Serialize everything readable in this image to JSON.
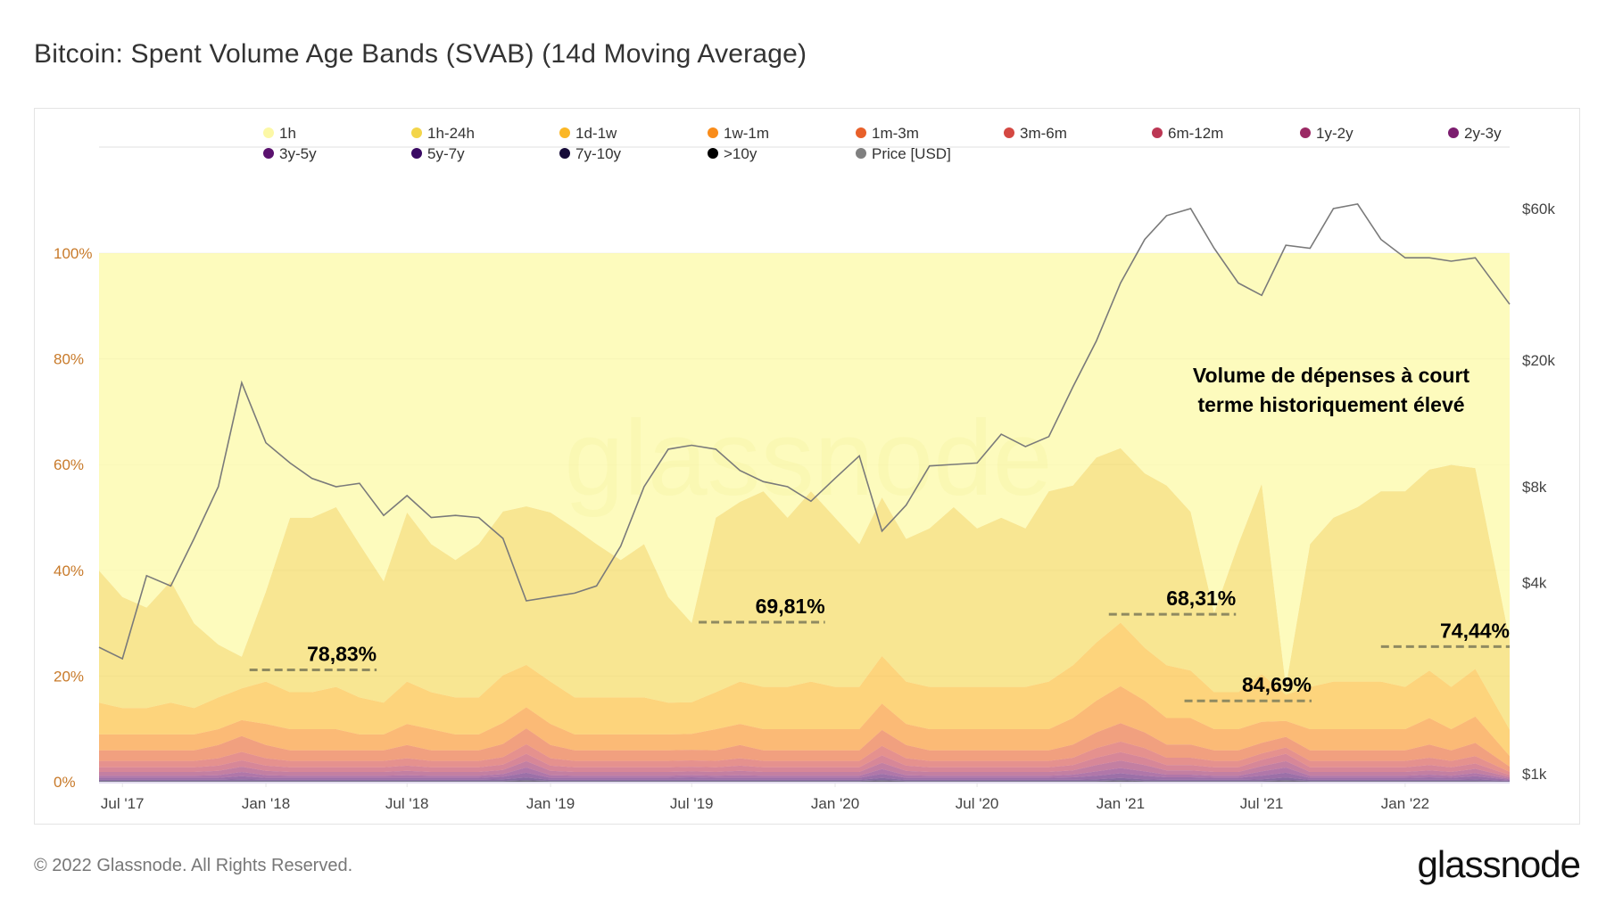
{
  "title": "Bitcoin: Spent Volume Age Bands (SVAB) (14d Moving Average)",
  "footer": {
    "copyright": "© 2022 Glassnode. All Rights Reserved.",
    "logo": "glassnode"
  },
  "watermark": "glassnode",
  "chart_data": {
    "type": "area",
    "stacked": true,
    "normalized_percent": true,
    "title": "Bitcoin: Spent Volume Age Bands (SVAB) (14d Moving Average)",
    "xlim": [
      "2017-06-01",
      "2022-05-15"
    ],
    "x_ticks": [
      {
        "date": "2017-07-01",
        "label": "Jul '17"
      },
      {
        "date": "2018-01-01",
        "label": "Jan '18"
      },
      {
        "date": "2018-07-01",
        "label": "Jul '18"
      },
      {
        "date": "2019-01-01",
        "label": "Jan '19"
      },
      {
        "date": "2019-07-01",
        "label": "Jul '19"
      },
      {
        "date": "2020-01-01",
        "label": "Jan '20"
      },
      {
        "date": "2020-07-01",
        "label": "Jul '20"
      },
      {
        "date": "2021-01-01",
        "label": "Jan '21"
      },
      {
        "date": "2021-07-01",
        "label": "Jul '21"
      },
      {
        "date": "2022-01-01",
        "label": "Jan '22"
      }
    ],
    "y_left": {
      "ylim": [
        0,
        100
      ],
      "ticks": [
        0,
        20,
        40,
        60,
        80,
        100
      ],
      "tick_labels": [
        "0%",
        "20%",
        "40%",
        "60%",
        "80%",
        "100%"
      ],
      "grid": true
    },
    "y_right": {
      "scale": "log",
      "ylim": [
        1000,
        60000
      ],
      "ticks": [
        1000,
        4000,
        8000,
        20000,
        60000
      ],
      "tick_labels": [
        "$1k",
        "$4k",
        "$8k",
        "$20k",
        "$60k"
      ]
    },
    "legend_placement": "top",
    "x": [
      "2017-06",
      "2017-07",
      "2017-08",
      "2017-09",
      "2017-10",
      "2017-11",
      "2017-12",
      "2018-01",
      "2018-02",
      "2018-03",
      "2018-04",
      "2018-05",
      "2018-06",
      "2018-07",
      "2018-08",
      "2018-09",
      "2018-10",
      "2018-11",
      "2018-12",
      "2019-01",
      "2019-02",
      "2019-03",
      "2019-04",
      "2019-05",
      "2019-06",
      "2019-07",
      "2019-08",
      "2019-09",
      "2019-10",
      "2019-11",
      "2019-12",
      "2020-01",
      "2020-02",
      "2020-03",
      "2020-04",
      "2020-05",
      "2020-06",
      "2020-07",
      "2020-08",
      "2020-09",
      "2020-10",
      "2020-11",
      "2020-12",
      "2021-01",
      "2021-02",
      "2021-03",
      "2021-04",
      "2021-05",
      "2021-06",
      "2021-07",
      "2021-08",
      "2021-09",
      "2021-10",
      "2021-11",
      "2021-12",
      "2022-01",
      "2022-02",
      "2022-03",
      "2022-04",
      "2022-05"
    ],
    "series": [
      {
        "name": "1h",
        "color": "#fcf99a",
        "remainder_to_100": true
      },
      {
        "name": "1h-24h",
        "color": "#f3d54a",
        "values": [
          25,
          21,
          19,
          23,
          16,
          10,
          6,
          17,
          33,
          33,
          34,
          29,
          23,
          32,
          28,
          26,
          29,
          31,
          30,
          32,
          32,
          29,
          26,
          29,
          20,
          15,
          33,
          34,
          37,
          32,
          36,
          32,
          27,
          30,
          27,
          30,
          34,
          30,
          32,
          30,
          36,
          34,
          35,
          33,
          33,
          34,
          30,
          15,
          28,
          36,
          1.5,
          27,
          31,
          33,
          36,
          37,
          38,
          42,
          38,
          17
        ]
      },
      {
        "name": "1d-1w",
        "color": "#fbb725",
        "values": [
          6,
          5,
          5,
          6,
          5,
          6,
          6,
          8,
          7,
          7,
          8,
          7,
          6,
          8,
          7,
          7,
          7,
          9,
          8,
          8,
          7,
          7,
          7,
          7,
          6,
          6,
          7,
          8,
          8,
          8,
          9,
          8,
          8,
          9,
          8,
          8,
          8,
          8,
          8,
          8,
          9,
          10,
          11,
          12,
          10,
          10,
          9,
          7,
          7,
          9,
          5,
          8,
          9,
          9,
          9,
          8,
          9,
          8,
          9,
          5
        ]
      },
      {
        "name": "1w-1m",
        "color": "#f98c1a",
        "values": [
          3,
          3,
          3,
          3,
          3,
          3,
          3,
          4,
          4,
          4,
          4,
          3,
          3,
          4,
          4,
          3,
          3,
          4,
          4,
          4,
          3,
          3,
          3,
          3,
          3,
          3,
          4,
          4,
          4,
          4,
          4,
          4,
          4,
          5,
          4,
          4,
          4,
          4,
          4,
          4,
          4,
          5,
          6,
          7,
          6,
          5,
          5,
          4,
          4,
          4,
          3,
          4,
          4,
          4,
          4,
          4,
          5,
          4,
          5,
          2
        ]
      },
      {
        "name": "1m-3m",
        "color": "#e8602a",
        "values": [
          2,
          2,
          2,
          2,
          2,
          2.5,
          3,
          2.5,
          2,
          2,
          2,
          2,
          2,
          2.5,
          2,
          2,
          2,
          2.5,
          3,
          2.5,
          2,
          2,
          2,
          2,
          2,
          2,
          2,
          2.5,
          2,
          2,
          2,
          2,
          2,
          3,
          2.5,
          2,
          2,
          2,
          2,
          2,
          2,
          2.5,
          3,
          3.5,
          3,
          2.5,
          2.5,
          2,
          2,
          2,
          2,
          2,
          2,
          2,
          2,
          2,
          2.5,
          2,
          2.5,
          1
        ]
      },
      {
        "name": "3m-6m",
        "color": "#d44842",
        "values": [
          1.2,
          1.2,
          1.2,
          1.2,
          1.2,
          1.4,
          1.6,
          1.4,
          1.2,
          1.2,
          1.2,
          1.2,
          1.2,
          1.4,
          1.2,
          1.2,
          1.2,
          1.4,
          1.8,
          1.4,
          1.2,
          1.2,
          1.2,
          1.2,
          1.2,
          1.2,
          1.2,
          1.4,
          1.2,
          1.2,
          1.2,
          1.2,
          1.2,
          1.8,
          1.4,
          1.2,
          1.2,
          1.2,
          1.2,
          1.2,
          1.2,
          1.4,
          1.8,
          2,
          1.8,
          1.4,
          1.4,
          1.2,
          1.2,
          1.2,
          1.2,
          1.2,
          1.2,
          1.2,
          1.2,
          1.2,
          1.4,
          1.2,
          1.4,
          0.6
        ]
      },
      {
        "name": "6m-12m",
        "color": "#bc3754",
        "values": [
          0.9,
          0.9,
          0.9,
          0.9,
          0.9,
          1,
          1.2,
          1,
          0.9,
          0.9,
          0.9,
          0.9,
          0.9,
          1,
          0.9,
          0.9,
          0.9,
          1,
          1.4,
          1,
          0.9,
          0.9,
          0.9,
          0.9,
          0.9,
          0.9,
          0.9,
          1,
          0.9,
          0.9,
          0.9,
          0.9,
          0.9,
          1.4,
          1,
          0.9,
          0.9,
          0.9,
          0.9,
          0.9,
          0.9,
          1,
          1.4,
          1.6,
          1.4,
          1,
          1,
          0.9,
          0.9,
          1.2,
          1.4,
          0.9,
          0.9,
          0.9,
          0.9,
          0.9,
          1,
          0.9,
          1,
          0.4
        ]
      },
      {
        "name": "1y-2y",
        "color": "#9b2964",
        "values": [
          0.7,
          0.7,
          0.7,
          0.7,
          0.7,
          0.8,
          1,
          0.8,
          0.7,
          0.7,
          0.7,
          0.7,
          0.7,
          0.8,
          0.7,
          0.7,
          0.7,
          0.8,
          1.2,
          0.8,
          0.7,
          0.7,
          0.7,
          0.7,
          0.7,
          0.7,
          0.7,
          0.8,
          0.7,
          0.7,
          0.7,
          0.7,
          0.7,
          1.2,
          0.8,
          0.7,
          0.7,
          0.7,
          0.7,
          0.7,
          0.7,
          0.8,
          1.2,
          1.4,
          1.2,
          0.8,
          0.8,
          0.7,
          0.7,
          1,
          1.2,
          0.7,
          0.7,
          0.7,
          0.7,
          0.7,
          0.8,
          0.7,
          0.8,
          0.3
        ]
      },
      {
        "name": "2y-3y",
        "color": "#7c1d6f",
        "values": [
          0.4,
          0.4,
          0.4,
          0.4,
          0.4,
          0.5,
          0.8,
          0.5,
          0.4,
          0.4,
          0.4,
          0.4,
          0.4,
          0.5,
          0.4,
          0.4,
          0.4,
          0.5,
          1,
          0.5,
          0.4,
          0.4,
          0.4,
          0.4,
          0.4,
          0.4,
          0.4,
          0.5,
          0.4,
          0.4,
          0.4,
          0.4,
          0.4,
          0.9,
          0.5,
          0.4,
          0.4,
          0.4,
          0.4,
          0.4,
          0.4,
          0.5,
          0.8,
          1,
          0.8,
          0.5,
          0.5,
          0.4,
          0.4,
          0.8,
          1,
          0.4,
          0.4,
          0.4,
          0.4,
          0.4,
          0.5,
          0.4,
          0.6,
          0.2
        ]
      },
      {
        "name": "3y-5y",
        "color": "#5a116e",
        "values": [
          0.4,
          0.4,
          0.4,
          0.4,
          0.4,
          0.4,
          0.6,
          0.4,
          0.4,
          0.4,
          0.4,
          0.4,
          0.4,
          0.4,
          0.4,
          0.4,
          0.4,
          0.5,
          0.9,
          0.4,
          0.4,
          0.4,
          0.4,
          0.4,
          0.4,
          0.5,
          0.4,
          0.4,
          0.4,
          0.4,
          0.4,
          0.4,
          0.4,
          0.8,
          0.4,
          0.4,
          0.4,
          0.4,
          0.4,
          0.4,
          0.4,
          0.5,
          0.7,
          0.9,
          0.7,
          0.5,
          0.5,
          0.4,
          0.4,
          0.7,
          0.9,
          0.4,
          0.4,
          0.4,
          0.4,
          0.4,
          0.5,
          0.4,
          0.6,
          0.2
        ]
      },
      {
        "name": "5y-7y",
        "color": "#390963",
        "values": [
          0.2,
          0.2,
          0.2,
          0.2,
          0.2,
          0.2,
          0.3,
          0.2,
          0.2,
          0.2,
          0.2,
          0.2,
          0.2,
          0.2,
          0.2,
          0.2,
          0.2,
          0.3,
          0.5,
          0.2,
          0.2,
          0.2,
          0.2,
          0.2,
          0.2,
          0.2,
          0.2,
          0.2,
          0.2,
          0.2,
          0.2,
          0.2,
          0.2,
          0.4,
          0.2,
          0.2,
          0.2,
          0.2,
          0.2,
          0.2,
          0.2,
          0.2,
          0.3,
          0.4,
          0.3,
          0.2,
          0.2,
          0.2,
          0.2,
          0.3,
          0.5,
          0.2,
          0.2,
          0.2,
          0.2,
          0.2,
          0.2,
          0.2,
          0.3,
          0.1
        ]
      },
      {
        "name": "7y-10y",
        "color": "#160b39",
        "values": [
          0.1,
          0.1,
          0.1,
          0.1,
          0.1,
          0.1,
          0.1,
          0.1,
          0.1,
          0.1,
          0.1,
          0.1,
          0.1,
          0.1,
          0.1,
          0.1,
          0.1,
          0.1,
          0.2,
          0.1,
          0.1,
          0.1,
          0.1,
          0.1,
          0.1,
          0.1,
          0.1,
          0.1,
          0.1,
          0.1,
          0.1,
          0.1,
          0.1,
          0.2,
          0.1,
          0.1,
          0.1,
          0.1,
          0.1,
          0.1,
          0.1,
          0.1,
          0.1,
          0.2,
          0.1,
          0.1,
          0.1,
          0.1,
          0.1,
          0.1,
          0.2,
          0.1,
          0.1,
          0.1,
          0.1,
          0.1,
          0.1,
          0.1,
          0.1,
          0.05
        ]
      },
      {
        "name": ">10y",
        "color": "#000004",
        "values": [
          0.05,
          0.05,
          0.05,
          0.05,
          0.05,
          0.05,
          0.05,
          0.05,
          0.05,
          0.05,
          0.05,
          0.05,
          0.05,
          0.05,
          0.05,
          0.05,
          0.05,
          0.05,
          0.1,
          0.05,
          0.05,
          0.05,
          0.05,
          0.05,
          0.05,
          0.05,
          0.05,
          0.05,
          0.05,
          0.05,
          0.05,
          0.05,
          0.05,
          0.1,
          0.05,
          0.05,
          0.05,
          0.05,
          0.05,
          0.05,
          0.05,
          0.05,
          0.05,
          0.1,
          0.05,
          0.05,
          0.05,
          0.05,
          0.05,
          0.05,
          0.1,
          0.05,
          0.05,
          0.05,
          0.05,
          0.05,
          0.05,
          0.05,
          0.05,
          0.02
        ]
      }
    ],
    "price": {
      "name": "Price [USD]",
      "color": "#7a7a7a",
      "axis": "right",
      "values": [
        2500,
        2300,
        4200,
        3900,
        5500,
        8000,
        17000,
        11000,
        9500,
        8500,
        8000,
        8200,
        6500,
        7500,
        6400,
        6500,
        6400,
        5500,
        3500,
        3600,
        3700,
        3900,
        5200,
        8000,
        10500,
        10800,
        10500,
        9000,
        8300,
        8000,
        7200,
        8500,
        10000,
        5800,
        7000,
        9300,
        9400,
        9500,
        11700,
        10700,
        11500,
        16500,
        23000,
        35000,
        48000,
        57000,
        60000,
        45000,
        35000,
        32000,
        46000,
        45000,
        60000,
        62000,
        48000,
        42000,
        42000,
        41000,
        42000,
        30000
      ]
    },
    "annotations": [
      {
        "label": "78,83%",
        "value": 21.17,
        "from": "2017-12-11",
        "to": "2018-05-23"
      },
      {
        "label": "69,81%",
        "value": 30.19,
        "from": "2019-07-10",
        "to": "2019-12-19"
      },
      {
        "label": "68,31%",
        "value": 31.69,
        "from": "2020-12-17",
        "to": "2021-05-29"
      },
      {
        "label": "84,69%",
        "value": 15.31,
        "from": "2021-03-24",
        "to": "2021-09-03"
      },
      {
        "label": "74,44%",
        "value": 25.56,
        "from": "2021-12-01",
        "to": "2022-05-15"
      }
    ],
    "note": [
      "Volume de dépenses à court",
      "terme historiquement élevé"
    ]
  }
}
